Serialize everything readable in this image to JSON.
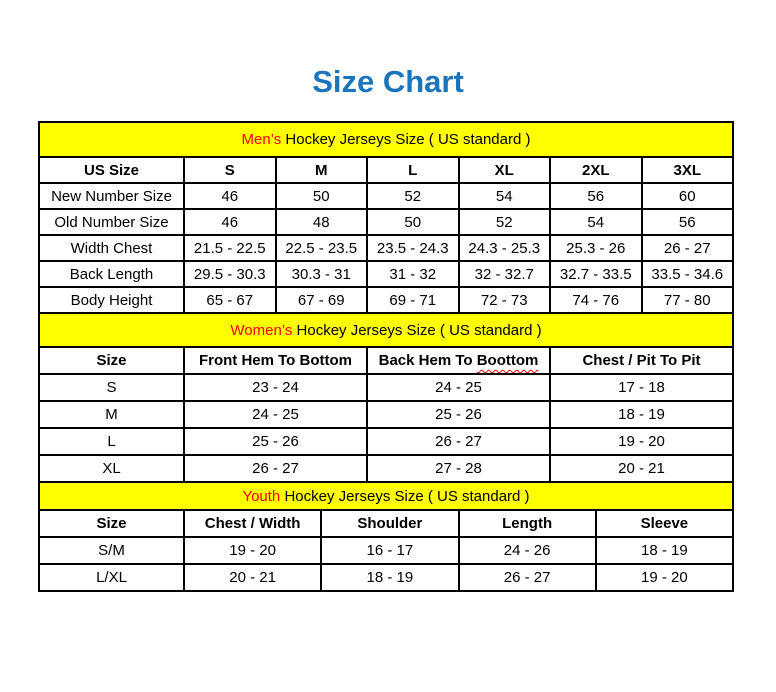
{
  "page": {
    "title": "Size Chart",
    "title_color": "#1B75BC",
    "accent_red": "#FF0000",
    "band_yellow": "#FFFF00",
    "border_color": "#000000"
  },
  "mens": {
    "header_red": "Men’s",
    "header_rest": " Hockey Jerseys Size ( US standard )",
    "bold_labels": false,
    "columns": [
      "US Size",
      "S",
      "M",
      "L",
      "XL",
      "2XL",
      "3XL"
    ],
    "rows": [
      {
        "label": "New Number Size",
        "values": [
          "46",
          "50",
          "52",
          "54",
          "56",
          "60"
        ]
      },
      {
        "label": "Old Number Size",
        "values": [
          "46",
          "48",
          "50",
          "52",
          "54",
          "56"
        ]
      },
      {
        "label": "Width Chest",
        "values": [
          "21.5 - 22.5",
          "22.5 - 23.5",
          "23.5 - 24.3",
          "24.3 - 25.3",
          "25.3 - 26",
          "26 - 27"
        ]
      },
      {
        "label": "Back Length",
        "values": [
          "29.5 - 30.3",
          "30.3 - 31",
          "31 - 32",
          "32 - 32.7",
          "32.7 - 33.5",
          "33.5 - 34.6"
        ]
      },
      {
        "label": "Body Height",
        "values": [
          "65 - 67",
          "67 - 69",
          "69 - 71",
          "72 - 73",
          "74 - 76",
          "77 - 80"
        ]
      }
    ]
  },
  "womens": {
    "header_red": "Women’s",
    "header_rest": " Hockey Jerseys Size ( US standard )",
    "bold_labels": true,
    "columns": [
      "Size",
      "Front Hem To Bottom",
      "Back Hem To Boottom",
      "Chest / Pit To Pit"
    ],
    "misspelling": {
      "column": 2,
      "word": "Boottom"
    },
    "rows": [
      {
        "label": "S",
        "values": [
          "23 - 24",
          "24 - 25",
          "17 - 18"
        ]
      },
      {
        "label": "M",
        "values": [
          "24 - 25",
          "25 - 26",
          "18 - 19"
        ]
      },
      {
        "label": "L",
        "values": [
          "25 - 26",
          "26 - 27",
          "19 - 20"
        ]
      },
      {
        "label": "XL",
        "values": [
          "26 - 27",
          "27 - 28",
          "20 - 21"
        ]
      }
    ]
  },
  "youth": {
    "header_red": "Youth",
    "header_rest": " Hockey Jerseys Size ( US standard )",
    "bold_labels": true,
    "columns": [
      "Size",
      "Chest / Width",
      "Shoulder",
      "Length",
      "Sleeve"
    ],
    "rows": [
      {
        "label": "S/M",
        "values": [
          "19 - 20",
          "16 - 17",
          "24 - 26",
          "18 - 19"
        ]
      },
      {
        "label": "L/XL",
        "values": [
          "20 - 21",
          "18 - 19",
          "26 - 27",
          "19 - 20"
        ]
      }
    ]
  }
}
